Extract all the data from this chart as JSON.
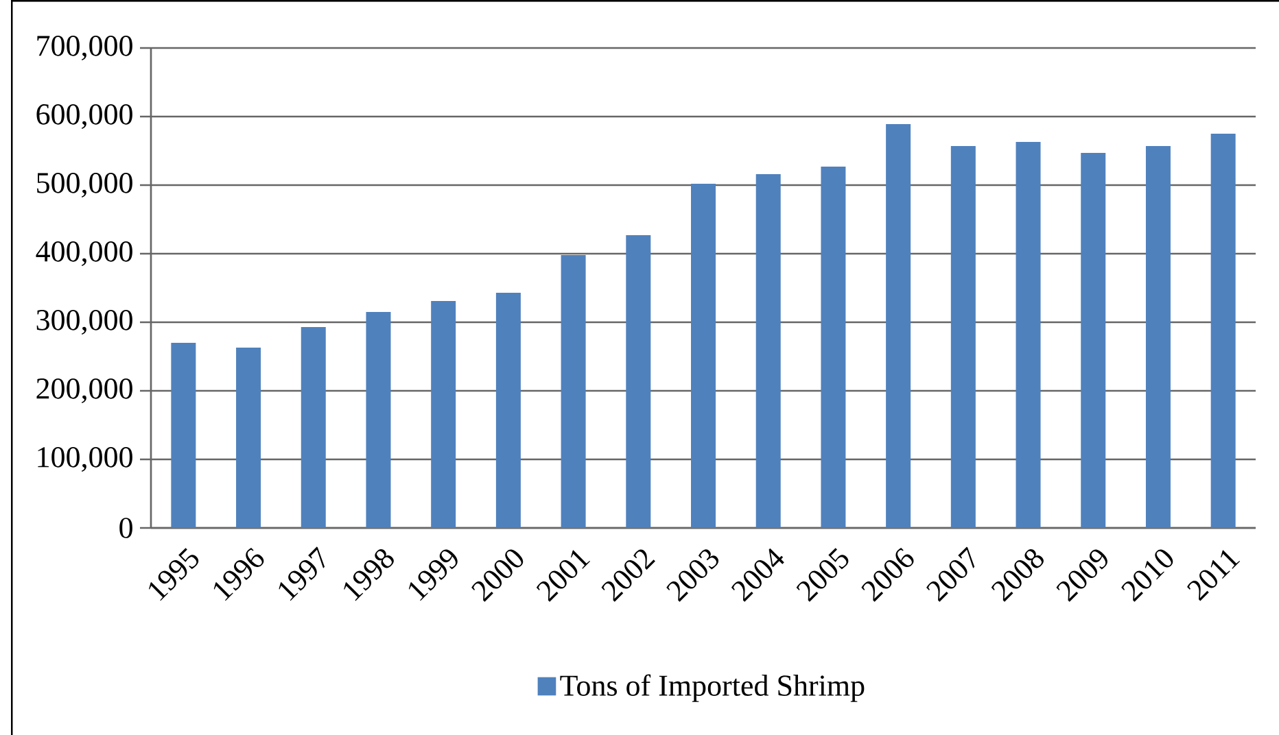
{
  "chart_data": {
    "type": "bar",
    "categories": [
      "1995",
      "1996",
      "1997",
      "1998",
      "1999",
      "2000",
      "2001",
      "2002",
      "2003",
      "2004",
      "2005",
      "2006",
      "2007",
      "2008",
      "2009",
      "2010",
      "2011"
    ],
    "series": [
      {
        "name": "Tons of Imported Shrimp",
        "color": "#4f81bd",
        "values": [
          270000,
          263000,
          293000,
          315000,
          331000,
          343000,
          398000,
          427000,
          502000,
          516000,
          527000,
          589000,
          557000,
          563000,
          547000,
          557000,
          575000
        ]
      }
    ],
    "ylim": [
      0,
      700000
    ],
    "yticks": [
      {
        "value": 0,
        "label": "0"
      },
      {
        "value": 100000,
        "label": "100,000"
      },
      {
        "value": 200000,
        "label": "200,000"
      },
      {
        "value": 300000,
        "label": "300,000"
      },
      {
        "value": 400000,
        "label": "400,000"
      },
      {
        "value": 500000,
        "label": "500,000"
      },
      {
        "value": 600000,
        "label": "600,000"
      },
      {
        "value": 700000,
        "label": "700,000"
      }
    ],
    "grid": "y",
    "legend": "bottom"
  }
}
